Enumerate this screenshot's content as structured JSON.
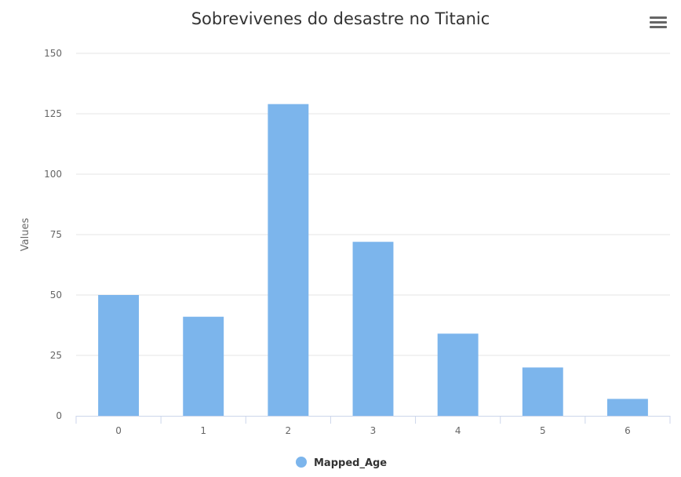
{
  "menu": {
    "icon": "hamburger-menu-icon"
  },
  "colors": {
    "series": "#7cb5ec",
    "grid": "#e6e6e6",
    "axis": "#ccd6eb"
  },
  "chart_data": {
    "type": "bar",
    "title": "Sobrevivenes do desastre no Titanic",
    "xlabel": "",
    "ylabel": "Values",
    "categories": [
      "0",
      "1",
      "2",
      "3",
      "4",
      "5",
      "6"
    ],
    "series": [
      {
        "name": "Mapped_Age",
        "values": [
          50,
          41,
          129,
          72,
          34,
          20,
          7
        ]
      }
    ],
    "ylim": [
      0,
      150
    ],
    "yticks": [
      "0",
      "25",
      "50",
      "75",
      "100",
      "125",
      "150"
    ],
    "grid": true,
    "legend": "bottom-center"
  }
}
